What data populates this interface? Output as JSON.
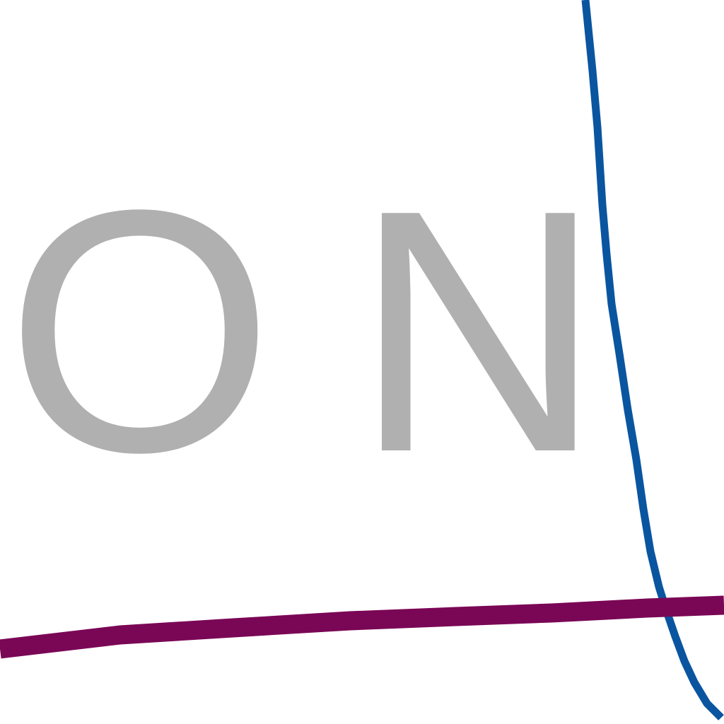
{
  "text": {
    "letter_o": "O",
    "letter_n": "N"
  },
  "colors": {
    "background": "#ffffff",
    "letters": "#b0b0b0",
    "blue_line": "#0a55a0",
    "purple_line": "#7a0656"
  }
}
